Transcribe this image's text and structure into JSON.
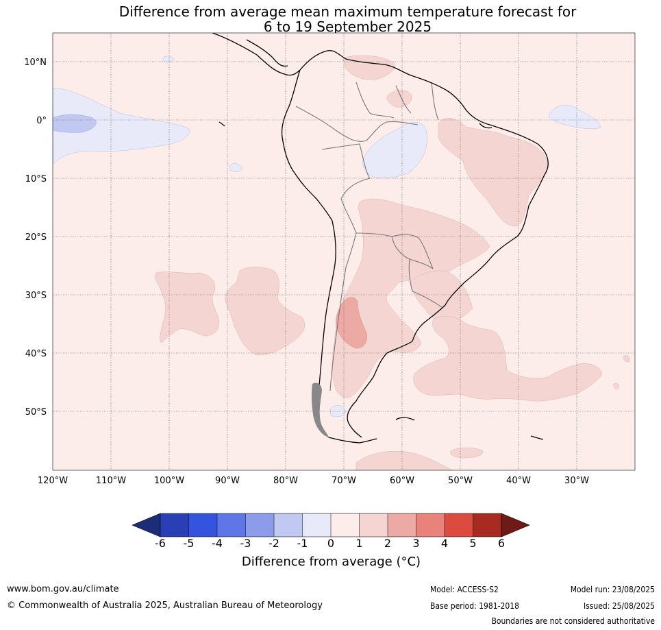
{
  "title": {
    "line1": "Difference from average mean maximum temperature forecast for",
    "line2": "6 to 19 September 2025"
  },
  "map": {
    "projection": "equirectangular",
    "lon_range": [
      -120,
      -20
    ],
    "lat_range": [
      -60,
      15
    ],
    "latitude_labels": [
      "10°N",
      "0°",
      "10°S",
      "20°S",
      "30°S",
      "40°S",
      "50°S"
    ],
    "longitude_labels": [
      "120°W",
      "110°W",
      "100°W",
      "90°W",
      "80°W",
      "70°W",
      "60°W",
      "50°W",
      "40°W",
      "30°W"
    ],
    "gridlines": true,
    "background_anomaly_class": "0 to 1",
    "regions": [
      {
        "name": "Eastern equatorial Pacific",
        "class": "-1 to 0"
      },
      {
        "name": "Eastern equatorial Pacific core",
        "class": "-2 to -1"
      },
      {
        "name": "Amazon basin",
        "class": "-1 to 0"
      },
      {
        "name": "Equatorial Atlantic",
        "class": "-1 to 0"
      },
      {
        "name": "Northeast Brazil",
        "class": "1 to 2"
      },
      {
        "name": "Central South America",
        "class": "1 to 2"
      },
      {
        "name": "Central Argentina",
        "class": "2 to 3"
      },
      {
        "name": "Southeast Pacific",
        "class": "1 to 2"
      },
      {
        "name": "Southwest Atlantic",
        "class": "1 to 2"
      }
    ]
  },
  "colorbar": {
    "ticks": [
      "-6",
      "-5",
      "-4",
      "-3",
      "-2",
      "-1",
      "0",
      "1",
      "2",
      "3",
      "4",
      "5",
      "6"
    ],
    "colors": [
      "#2a3fb5",
      "#3454e0",
      "#5f77e6",
      "#8c9bea",
      "#c1c8f2",
      "#e8eafa",
      "#fcecea",
      "#f5d5d2",
      "#edaaa5",
      "#e9827b",
      "#db4b3f",
      "#a82a20"
    ],
    "under_color": "#1c2d78",
    "over_color": "#6f1a16",
    "label": "Difference from average ($^\\circ$C)",
    "label_display": "Difference from average (°C)"
  },
  "footer": {
    "website": "www.bom.gov.au/climate",
    "copyright": "© Commonwealth of Australia 2025, Australian Bureau of Meteorology",
    "model": "Model: ACCESS-S2",
    "base_period": "Base period: 1981-2018",
    "model_run": "Model run: 23/08/2025",
    "issued": "Issued: 25/08/2025",
    "disclaimer": "Boundaries are not considered authoritative"
  }
}
